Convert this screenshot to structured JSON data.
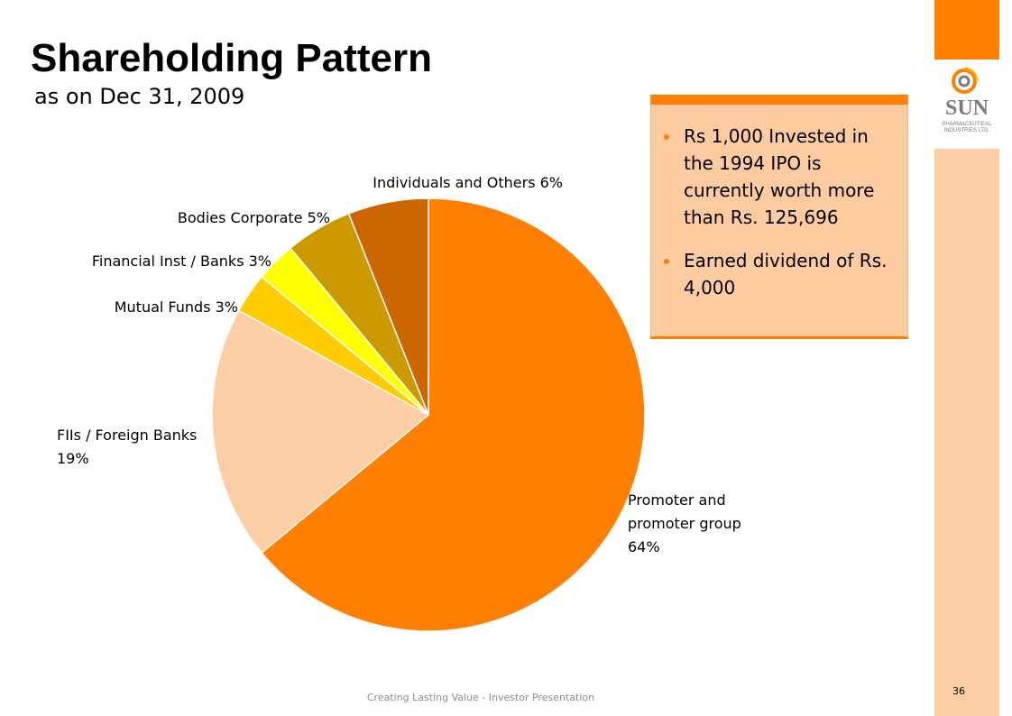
{
  "header": {
    "title": "Shareholding Pattern",
    "subtitle": "as on Dec 31, 2009"
  },
  "callout": {
    "bullets": [
      "Rs 1,000 Invested in the 1994 IPO is currently worth more than Rs. 125,696",
      "Earned dividend of Rs. 4,000"
    ]
  },
  "logo": {
    "word": "SUN",
    "sub_line1": "PHARMACEUTICAL",
    "sub_line2": "INDUSTRIES LTD."
  },
  "footer": {
    "text": "Creating Lasting Value - Investor Presentation",
    "page_number": "36"
  },
  "colors": {
    "orange": "#ff7f00",
    "callout_fill": "#fdcba0",
    "strip_light": "#fdcea3",
    "bullet": "#ff7f00"
  },
  "chart_data": {
    "type": "pie",
    "title": "",
    "slices": [
      {
        "label_lines": [
          "Promoter and",
          "promoter group",
          "64%"
        ],
        "value": 64,
        "color": "#ff7f00"
      },
      {
        "label_lines": [
          "FIIs / Foreign Banks",
          "19%"
        ],
        "value": 19,
        "color": "#fdcda6"
      },
      {
        "label_lines": [
          "Mutual Funds 3%"
        ],
        "value": 3,
        "color": "#ffcc00"
      },
      {
        "label_lines": [
          "Financial Inst / Banks 3%"
        ],
        "value": 3,
        "color": "#ffff00"
      },
      {
        "label_lines": [
          "Bodies Corporate  5%"
        ],
        "value": 5,
        "color": "#cc9900"
      },
      {
        "label_lines": [
          "Individuals and Others 6%"
        ],
        "value": 6,
        "color": "#cc6600"
      }
    ]
  }
}
